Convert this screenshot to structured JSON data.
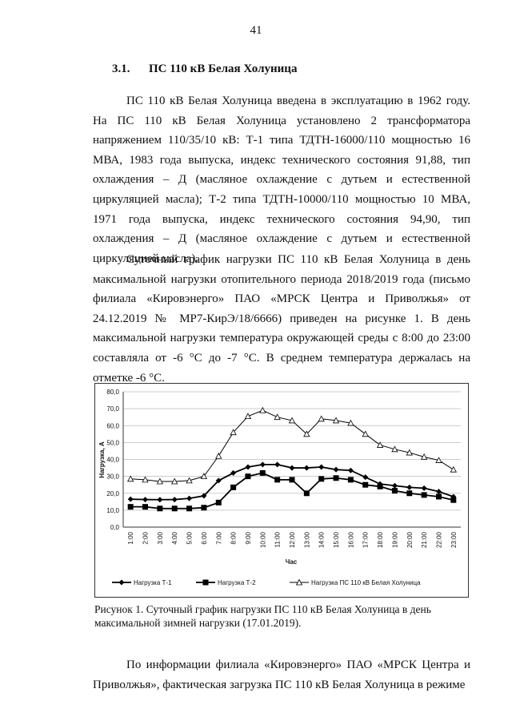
{
  "page_number": "41",
  "heading": {
    "number": "3.1.",
    "title": "ПС 110 кВ Белая Холуница"
  },
  "paragraphs": [
    "ПС 110 кВ Белая Холуница введена в эксплуатацию в 1962 году. На ПС 110 кВ Белая Холуница установлено 2 трансформатора напряжением 110/35/10 кВ: Т-1 типа ТДТН-16000/110 мощностью 16 МВА, 1983 года выпуска, индекс технического состояния 91,88, тип охлаждения – Д (масляное охлаждение с дутьем и естественной циркуляцией масла); Т-2 типа ТДТН-10000/110 мощностью 10 МВА, 1971 года выпуска, индекс технического состояния 94,90, тип охлаждения – Д (масляное охлаждение с дутьем и естественной циркуляцией масла).",
    "Суточный график нагрузки ПС 110 кВ Белая Холуница в день максимальной нагрузки отопительного периода 2018/2019 года (письмо филиала «Кировэнерго» ПАО «МРСК Центра и Приволжья» от 24.12.2019 № МР7-КирЭ/18/6666) приведен на рисунке 1. В день максимальной нагрузки температура окружающей среды с 8:00 до 23:00 составляла от -6 °С до -7 °С. В среднем температура держалась на отметке -6 °С."
  ],
  "chart_data": {
    "type": "line",
    "x_label": "Час",
    "y_label": "Нагрузка, А",
    "categories": [
      "1:00",
      "2:00",
      "3:00",
      "4:00",
      "5:00",
      "6:00",
      "7:00",
      "8:00",
      "9:00",
      "10:00",
      "11:00",
      "12:00",
      "13:00",
      "14:00",
      "15:00",
      "16:00",
      "17:00",
      "18:00",
      "19:00",
      "20:00",
      "21:00",
      "22:00",
      "23:00"
    ],
    "series": [
      {
        "name": "Нагрузка Т-1",
        "color": "#000000",
        "marker": "diamond",
        "values": [
          16.5,
          16.3,
          16.2,
          16.3,
          17,
          18.5,
          27.5,
          32,
          35.5,
          37,
          37,
          35,
          35,
          35.5,
          34,
          33.5,
          29.5,
          25.5,
          24.5,
          23.5,
          23,
          21,
          18
        ]
      },
      {
        "name": "Нагрузка Т-2",
        "color": "#000000",
        "marker": "square",
        "values": [
          12,
          12,
          11,
          11,
          11,
          11.5,
          14.5,
          23.5,
          30,
          32,
          28,
          28,
          20,
          28.5,
          29,
          28,
          25,
          24,
          21.5,
          20,
          19,
          18,
          16
        ]
      },
      {
        "name": "Нагрузка ПС 110 кВ Белая Холуница",
        "color": "#000000",
        "marker": "triangle",
        "values": [
          28.5,
          28,
          27,
          27,
          27.5,
          30,
          42,
          56,
          65.5,
          69,
          65,
          63,
          55,
          64,
          63,
          61.5,
          55,
          48.5,
          46,
          44,
          41.5,
          39.5,
          34
        ]
      }
    ],
    "ylim": [
      0,
      80
    ],
    "yticks": [
      {
        "value": 0,
        "label": "0,0"
      },
      {
        "value": 10,
        "label": "10,0"
      },
      {
        "value": 20,
        "label": "20,0"
      },
      {
        "value": 30,
        "label": "30,0"
      },
      {
        "value": 40,
        "label": "40,0"
      },
      {
        "value": 50,
        "label": "50,0"
      },
      {
        "value": 60,
        "label": "60,0"
      },
      {
        "value": 70,
        "label": "70,0"
      },
      {
        "value": 80,
        "label": "80,0"
      }
    ],
    "grid": true,
    "legend": "bottom"
  },
  "caption": "Рисунок 1. Суточный график нагрузки ПС 110 кВ Белая Холуница в день максимальной зимней нагрузки (17.01.2019).",
  "paragraph_after": "По информации филиала «Кировэнерго» ПАО «МРСК Центра и Приволжья», фактическая загрузка ПС 110 кВ Белая Холуница в режиме"
}
